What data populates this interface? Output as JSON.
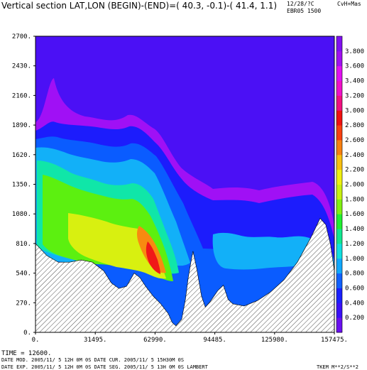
{
  "header": {
    "title": "Vertical section LAT,LON (BEGIN)-(END)=( 40.3,  -0.1)-( 41.4,   1.1)",
    "date_code": "12/28/?C",
    "code2": "CvH+Mas",
    "model_id": "EBR05 1500"
  },
  "footer": {
    "time": "TIME =    12600.",
    "line1": "DATE MOD. 2005/11/ 5  12H 0M 0S   DATE CUR. 2005/11/ 5  15H30M 0S",
    "line2": "DATE EXP.  2005/11/ 5  12H 0M 0S   DATE SEG. 2005/11/ 5  13H 0M 0S   LAMBERT",
    "variable": "TKEM M**2/S**2"
  },
  "chart_data": {
    "type": "heatmap",
    "title": "Vertical section LAT,LON (BEGIN)-(END)=( 40.3,  -0.1)-( 41.4,   1.1)",
    "variable": "TKEM M**2/S**2",
    "xlim": [
      0,
      157475
    ],
    "ylim": [
      0,
      2700
    ],
    "x_ticks": [
      "0.",
      "31495.",
      "62990.",
      "94485.",
      "125980.",
      "157475."
    ],
    "y_ticks": [
      "0.",
      "270.",
      "540.",
      "810.",
      "1080.",
      "1350.",
      "1620.",
      "1890.",
      "2160.",
      "2430.",
      "2700."
    ],
    "colorbar": {
      "levels": [
        "0.200",
        "0.400",
        "0.600",
        "0.800",
        "1.000",
        "1.200",
        "1.400",
        "1.600",
        "1.800",
        "2.000",
        "2.200",
        "2.400",
        "2.600",
        "2.800",
        "3.000",
        "3.200",
        "3.400",
        "3.600",
        "3.800"
      ],
      "colors": [
        "#6a10f0",
        "#3a10f8",
        "#1a20ff",
        "#1060ff",
        "#10a8ff",
        "#10e0e0",
        "#10e890",
        "#20f030",
        "#80f010",
        "#c8f010",
        "#f0f010",
        "#f8c010",
        "#f88010",
        "#f84010",
        "#f01010",
        "#f01080",
        "#f010c8",
        "#e010f0",
        "#a010f0",
        "#8010f0"
      ]
    },
    "background_color": "#4b10f5",
    "terrain": [
      {
        "x": 0,
        "y": 810
      },
      {
        "x": 6000,
        "y": 700
      },
      {
        "x": 12000,
        "y": 640
      },
      {
        "x": 18000,
        "y": 640
      },
      {
        "x": 24000,
        "y": 660
      },
      {
        "x": 30000,
        "y": 640
      },
      {
        "x": 36000,
        "y": 560
      },
      {
        "x": 40000,
        "y": 450
      },
      {
        "x": 44000,
        "y": 400
      },
      {
        "x": 48000,
        "y": 420
      },
      {
        "x": 52000,
        "y": 540
      },
      {
        "x": 55000,
        "y": 500
      },
      {
        "x": 58000,
        "y": 420
      },
      {
        "x": 62000,
        "y": 330
      },
      {
        "x": 66000,
        "y": 260
      },
      {
        "x": 70000,
        "y": 170
      },
      {
        "x": 72000,
        "y": 90
      },
      {
        "x": 74000,
        "y": 60
      },
      {
        "x": 77000,
        "y": 120
      },
      {
        "x": 79000,
        "y": 300
      },
      {
        "x": 80500,
        "y": 500
      },
      {
        "x": 82000,
        "y": 650
      },
      {
        "x": 83000,
        "y": 740
      },
      {
        "x": 85000,
        "y": 580
      },
      {
        "x": 87500,
        "y": 330
      },
      {
        "x": 89500,
        "y": 230
      },
      {
        "x": 92000,
        "y": 280
      },
      {
        "x": 96000,
        "y": 380
      },
      {
        "x": 99000,
        "y": 430
      },
      {
        "x": 101500,
        "y": 300
      },
      {
        "x": 104000,
        "y": 260
      },
      {
        "x": 110000,
        "y": 240
      },
      {
        "x": 117000,
        "y": 290
      },
      {
        "x": 124000,
        "y": 370
      },
      {
        "x": 131000,
        "y": 480
      },
      {
        "x": 138000,
        "y": 640
      },
      {
        "x": 145000,
        "y": 860
      },
      {
        "x": 150000,
        "y": 1040
      },
      {
        "x": 153000,
        "y": 980
      },
      {
        "x": 155500,
        "y": 800
      },
      {
        "x": 157475,
        "y": 560
      }
    ]
  }
}
